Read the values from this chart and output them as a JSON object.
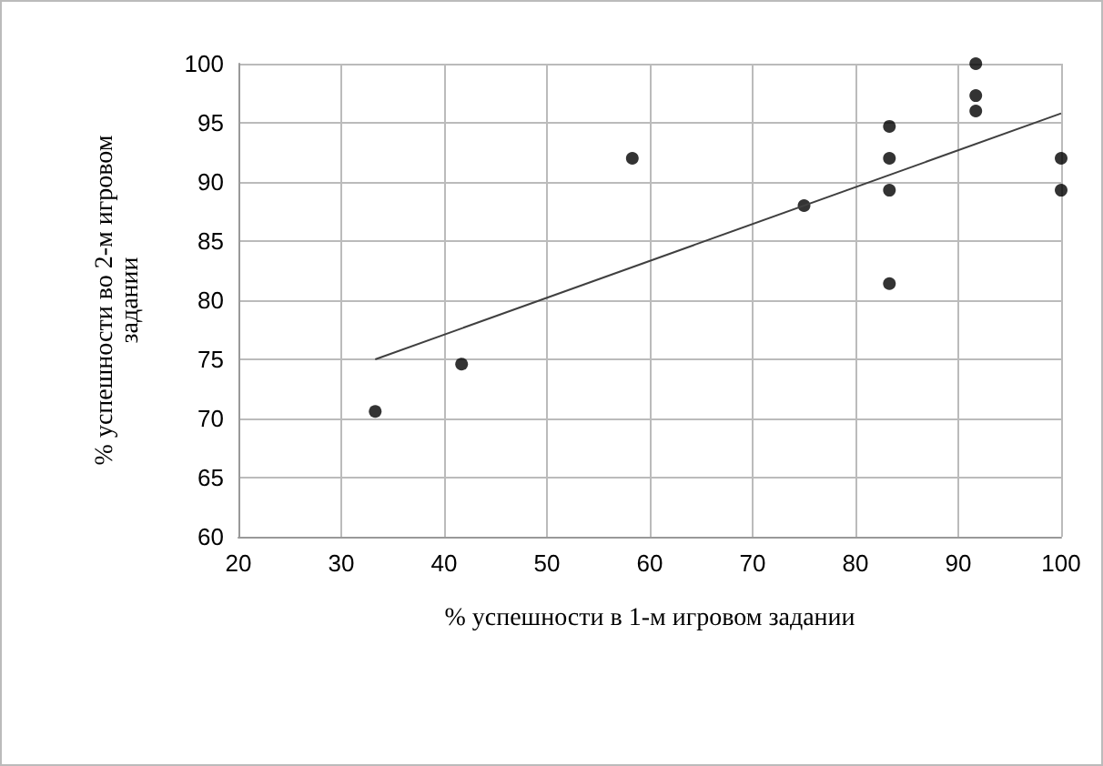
{
  "chart_data": {
    "type": "scatter",
    "xlabel": "% успешности в 1-м игровом задании",
    "ylabel": "% успешности во 2-м игровом\nзадании",
    "xlim": [
      20,
      100
    ],
    "xticks": [
      20,
      30,
      40,
      50,
      60,
      70,
      80,
      90,
      100
    ],
    "ylim": [
      60,
      100
    ],
    "yticks": [
      60,
      65,
      70,
      75,
      80,
      85,
      90,
      95,
      100
    ],
    "grid": true,
    "marker": "circle",
    "series": [
      {
        "color": "#000000",
        "x": [
          33.3,
          41.7,
          58.3,
          75,
          83.3,
          83.3,
          83.3,
          83.3,
          91.7,
          91.7,
          91.7,
          100,
          100
        ],
        "values": [
          70.6,
          74.6,
          92,
          88,
          94.7,
          92,
          89.3,
          81.4,
          100,
          97.3,
          96,
          92,
          89.3
        ]
      },
      {
        "type": "line",
        "color": "#404040",
        "marker": "none",
        "x": [
          33.3,
          100
        ],
        "values": [
          75,
          95.8
        ]
      }
    ]
  }
}
